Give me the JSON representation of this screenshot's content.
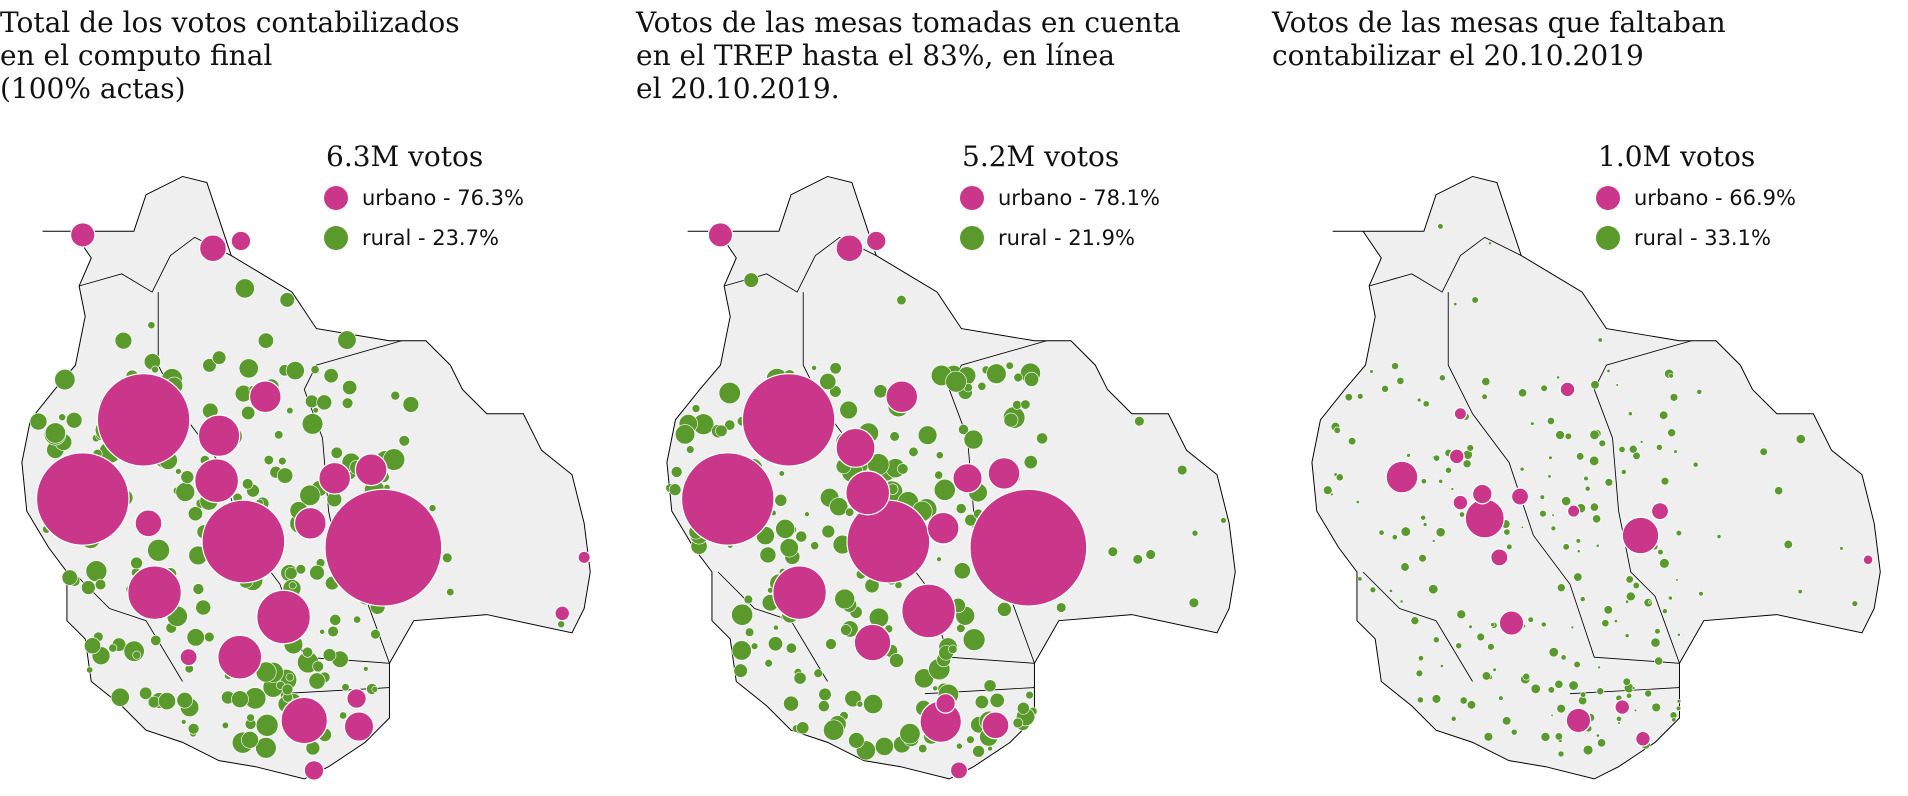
{
  "colors": {
    "urbano": "#c9368a",
    "rural": "#5a9a2c",
    "land": "#efefef",
    "border": "#000000"
  },
  "panels": [
    {
      "title": "Total de los votos contabilizados\nen el computo final\n(100% actas)",
      "total": "6.3M votos",
      "urbano": "urbano - 76.3%",
      "rural": "rural - 23.7%",
      "urbano_pct": 76.3,
      "rural_pct": 23.7
    },
    {
      "title": "Votos de las mesas tomadas en cuenta\nen el TREP hasta el 83%, en línea\nel 20.10.2019.",
      "total": "5.2M votos",
      "urbano": "urbano - 78.1%",
      "rural": "rural - 21.9%",
      "urbano_pct": 78.1,
      "rural_pct": 21.9
    },
    {
      "title": "Votos de las mesas que faltaban\ncontabilizar el 20.10.2019",
      "total": "1.0M votos",
      "urbano": "urbano - 66.9%",
      "rural": "rural - 33.1%",
      "urbano_pct": 66.9,
      "rural_pct": 33.1
    }
  ]
}
